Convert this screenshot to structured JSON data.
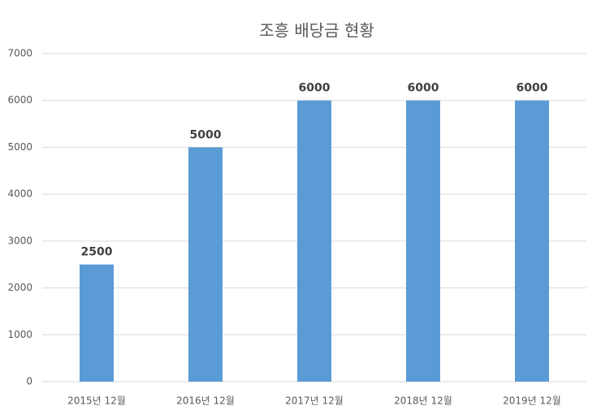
{
  "chart_data": {
    "type": "bar",
    "title": "조흥 배당금 현황",
    "categories": [
      "2015년 12월",
      "2016년 12월",
      "2017년 12월",
      "2018년 12월",
      "2019년 12월"
    ],
    "values": [
      2500,
      5000,
      6000,
      6000,
      6000
    ],
    "color": "#5b9bd5",
    "ylim": [
      0,
      7000
    ],
    "yticks": [
      0,
      1000,
      2000,
      3000,
      4000,
      5000,
      6000,
      7000
    ],
    "grid": true
  }
}
